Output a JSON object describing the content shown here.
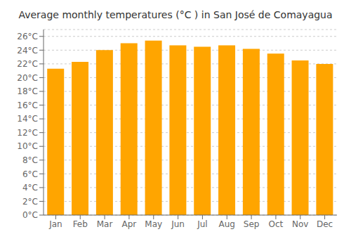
{
  "chart_data": {
    "type": "bar",
    "title": "Average monthly temperatures (°C ) in San José de Comayagua",
    "categories": [
      "Jan",
      "Feb",
      "Mar",
      "Apr",
      "May",
      "Jun",
      "Jul",
      "Aug",
      "Sep",
      "Oct",
      "Nov",
      "Dec"
    ],
    "values": [
      21.3,
      22.3,
      24.0,
      25.0,
      25.4,
      24.7,
      24.5,
      24.7,
      24.2,
      23.5,
      22.5,
      22.0
    ],
    "color": "#FFA500",
    "ylim": [
      0,
      27
    ],
    "yticks": [
      {
        "value": 0,
        "label": "0°C"
      },
      {
        "value": 2,
        "label": "2°C"
      },
      {
        "value": 4,
        "label": "4°C"
      },
      {
        "value": 6,
        "label": "6°C"
      },
      {
        "value": 8,
        "label": "8°C"
      },
      {
        "value": 10,
        "label": "10°C"
      },
      {
        "value": 12,
        "label": "12°C"
      },
      {
        "value": 14,
        "label": "14°C"
      },
      {
        "value": 16,
        "label": "16°C"
      },
      {
        "value": 18,
        "label": "18°C"
      },
      {
        "value": 20,
        "label": "20°C"
      },
      {
        "value": 22,
        "label": "22°C"
      },
      {
        "value": 24,
        "label": "24°C"
      },
      {
        "value": 26,
        "label": "26°C"
      }
    ],
    "grid": true
  }
}
